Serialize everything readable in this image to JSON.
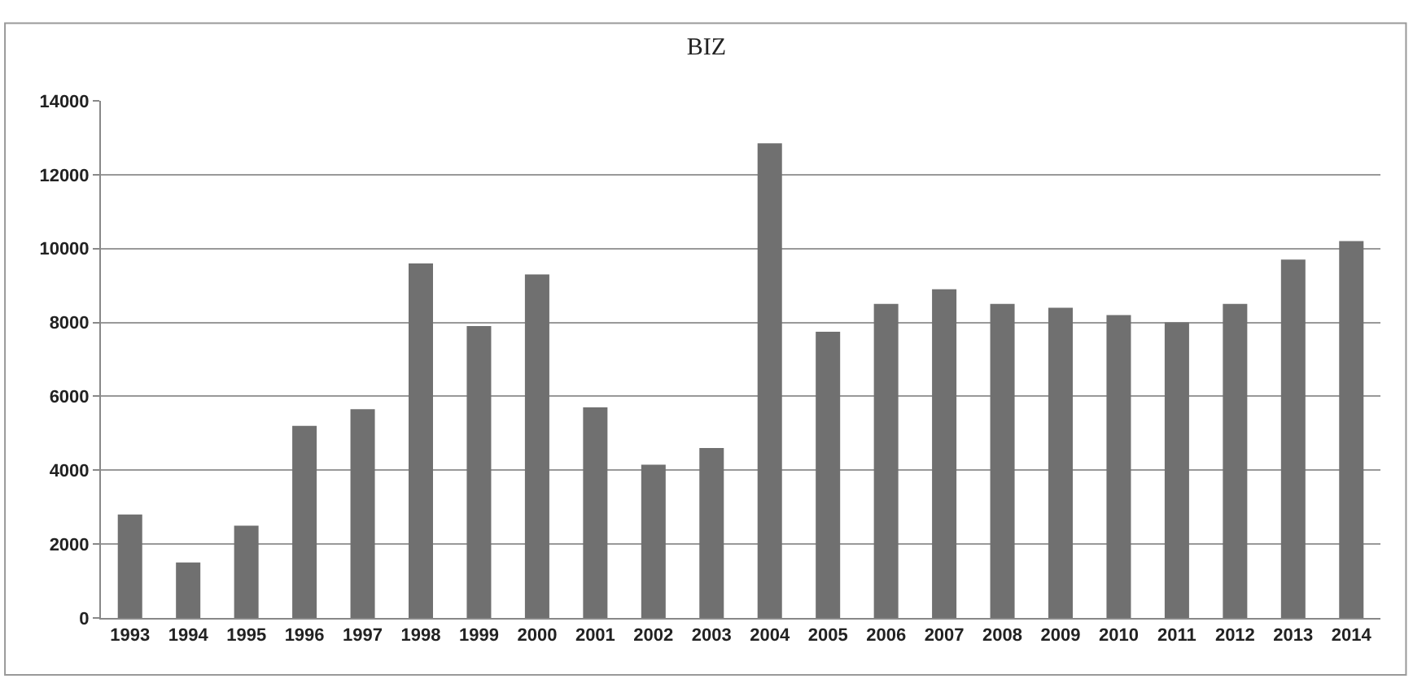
{
  "chart_data": {
    "type": "bar",
    "title": "BIZ",
    "categories": [
      "1993",
      "1994",
      "1995",
      "1996",
      "1997",
      "1998",
      "1999",
      "2000",
      "2001",
      "2002",
      "2003",
      "2004",
      "2005",
      "2006",
      "2007",
      "2008",
      "2009",
      "2010",
      "2011",
      "2012",
      "2013",
      "2014"
    ],
    "values": [
      2800,
      1500,
      2500,
      5200,
      5650,
      9600,
      7900,
      9300,
      5700,
      4150,
      4600,
      12850,
      7750,
      8500,
      8900,
      8500,
      8400,
      8200,
      8000,
      8500,
      9700,
      10200
    ],
    "color": "#707070",
    "ylim": [
      0,
      14000
    ],
    "yticks": [
      0,
      2000,
      4000,
      6000,
      8000,
      10000,
      12000,
      14000
    ],
    "grid": "y"
  }
}
